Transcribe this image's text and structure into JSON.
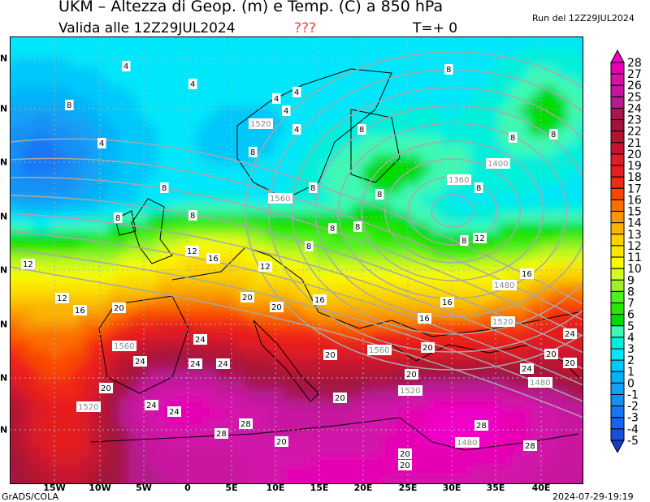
{
  "header": {
    "title": "UKM – Altezza di Geop. (m) e Temp. (C) a 850 hPa",
    "valid": "Valida alle 12Z29JUL2024",
    "unknown_marker": "???",
    "forecast_step": "T=+ 0",
    "run": "Run del 12Z29JUL2024"
  },
  "footer": {
    "credit": "GrADS/COLA",
    "timestamp": "2024-07-29-19:19"
  },
  "axes": {
    "lon_labels": [
      "15W",
      "10W",
      "5W",
      "0",
      "5E",
      "10E",
      "15E",
      "20E",
      "25E",
      "30E",
      "35E",
      "40E"
    ],
    "lat_labels": [
      "N",
      "N",
      "N",
      "N",
      "N",
      "N",
      "N",
      "N"
    ]
  },
  "colorbar": {
    "labels": [
      "28",
      "27",
      "26",
      "25",
      "24",
      "23",
      "22",
      "21",
      "20",
      "19",
      "18",
      "17",
      "16",
      "15",
      "14",
      "13",
      "12",
      "11",
      "10",
      "9",
      "8",
      "7",
      "6",
      "5",
      "4",
      "3",
      "2",
      "1",
      "0",
      "-1",
      "-2",
      "-3",
      "-4",
      "-5"
    ],
    "colors_top_to_bottom": [
      "#f000c8",
      "#e600b4",
      "#d214aa",
      "#c814a0",
      "#b41e8c",
      "#aa1450",
      "#a0143c",
      "#b41432",
      "#c81432",
      "#dc1e28",
      "#e61e1e",
      "#f02814",
      "#fa4600",
      "#fa6e00",
      "#fa9600",
      "#fab400",
      "#fad200",
      "#fae600",
      "#fafa00",
      "#d2fa1e",
      "#a0f028",
      "#50f020",
      "#28e600",
      "#00dc00",
      "#40f8b4",
      "#00f0dc",
      "#00e6fa",
      "#00c8fa",
      "#00b4f8",
      "#14a0f5",
      "#1490f5",
      "#1478f5",
      "#1464f0",
      "#1450dc",
      "#1040c8"
    ]
  },
  "contour_labels": {
    "temperature": [
      "4",
      "4",
      "4",
      "4",
      "4",
      "4",
      "4",
      "8",
      "8",
      "8",
      "8",
      "8",
      "8",
      "8",
      "8",
      "8",
      "8",
      "8",
      "8",
      "8",
      "8",
      "8",
      "8",
      "12",
      "12",
      "12",
      "12",
      "12",
      "16",
      "16",
      "16",
      "16",
      "16",
      "16",
      "20",
      "20",
      "20",
      "20",
      "20",
      "20",
      "20",
      "20",
      "20",
      "20",
      "20",
      "20",
      "20",
      "24",
      "24",
      "24",
      "24",
      "24",
      "24",
      "24",
      "24",
      "28",
      "28",
      "28",
      "28"
    ],
    "geopotential": [
      "1520",
      "1560",
      "1400",
      "1360",
      "1480",
      "1520",
      "1560",
      "1560",
      "1520",
      "1520",
      "1480",
      "1480"
    ]
  }
}
